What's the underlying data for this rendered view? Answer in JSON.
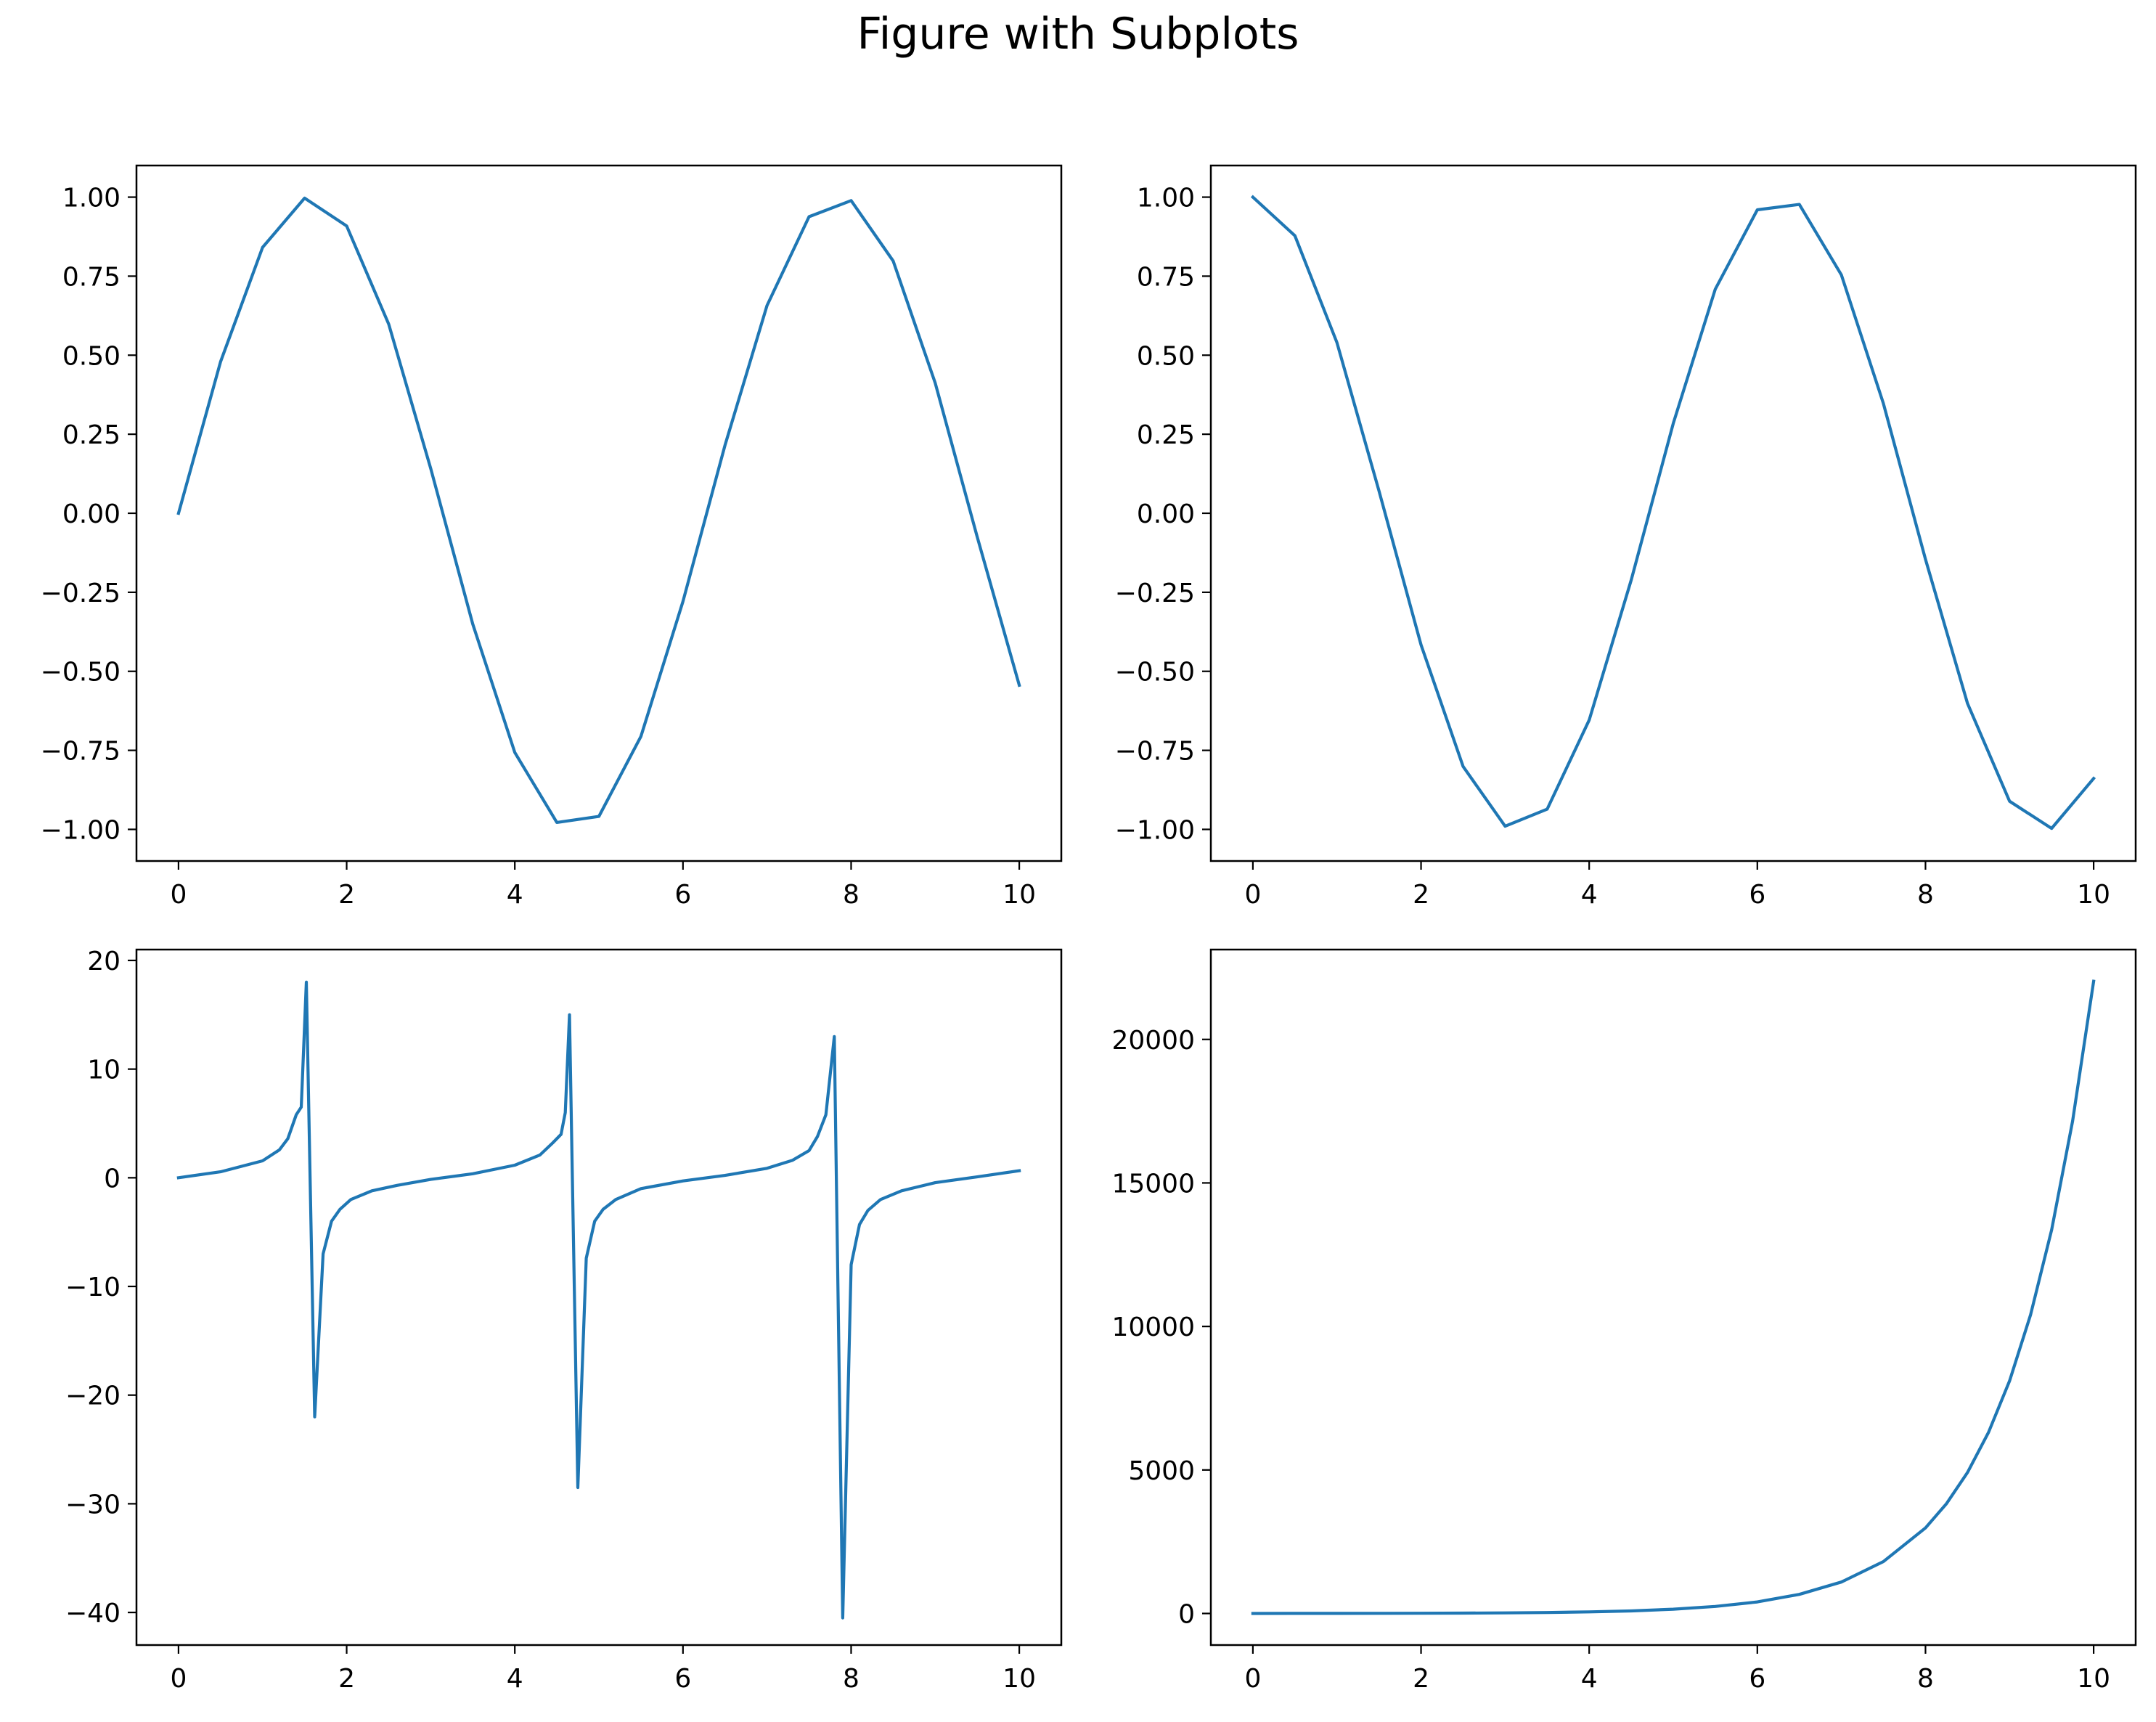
{
  "figure": {
    "title": "Figure with Subplots"
  },
  "colors": {
    "line": "#1f77b4",
    "axes": "#000000",
    "background": "#ffffff"
  },
  "chart_data": [
    {
      "type": "line",
      "position": "top-left",
      "xlim": [
        -0.5,
        10.5
      ],
      "ylim": [
        -1.1,
        1.1
      ],
      "xticks": [
        0,
        2,
        4,
        6,
        8,
        10
      ],
      "yticks": [
        -1.0,
        -0.75,
        -0.5,
        -0.25,
        0.0,
        0.25,
        0.5,
        0.75,
        1.0
      ],
      "xtick_labels": [
        "0",
        "2",
        "4",
        "6",
        "8",
        "10"
      ],
      "ytick_labels": [
        "−1.00",
        "−0.75",
        "−0.50",
        "−0.25",
        "0.00",
        "0.25",
        "0.50",
        "0.75",
        "1.00"
      ],
      "series": [
        {
          "x": [
            0,
            0.5,
            1,
            1.5,
            2,
            2.5,
            3,
            3.5,
            4,
            4.5,
            5,
            5.5,
            6,
            6.5,
            7,
            7.5,
            8,
            8.5,
            9,
            9.5,
            10
          ],
          "y": [
            0,
            0.479,
            0.841,
            0.997,
            0.909,
            0.598,
            0.141,
            -0.351,
            -0.757,
            -0.978,
            -0.959,
            -0.706,
            -0.279,
            0.215,
            0.657,
            0.938,
            0.989,
            0.798,
            0.412,
            -0.075,
            -0.544
          ]
        }
      ]
    },
    {
      "type": "line",
      "position": "top-right",
      "xlim": [
        -0.5,
        10.5
      ],
      "ylim": [
        -1.1,
        1.1
      ],
      "xticks": [
        0,
        2,
        4,
        6,
        8,
        10
      ],
      "yticks": [
        -1.0,
        -0.75,
        -0.5,
        -0.25,
        0.0,
        0.25,
        0.5,
        0.75,
        1.0
      ],
      "xtick_labels": [
        "0",
        "2",
        "4",
        "6",
        "8",
        "10"
      ],
      "ytick_labels": [
        "−1.00",
        "−0.75",
        "−0.50",
        "−0.25",
        "0.00",
        "0.25",
        "0.50",
        "0.75",
        "1.00"
      ],
      "series": [
        {
          "x": [
            0,
            0.5,
            1,
            1.5,
            2,
            2.5,
            3,
            3.5,
            4,
            4.5,
            5,
            5.5,
            6,
            6.5,
            7,
            7.5,
            8,
            8.5,
            9,
            9.5,
            10
          ],
          "y": [
            1,
            0.878,
            0.54,
            0.071,
            -0.416,
            -0.801,
            -0.99,
            -0.936,
            -0.654,
            -0.211,
            0.284,
            0.709,
            0.96,
            0.977,
            0.754,
            0.347,
            -0.146,
            -0.602,
            -0.911,
            -0.997,
            -0.839
          ]
        }
      ]
    },
    {
      "type": "line",
      "position": "bottom-left",
      "xlim": [
        -0.5,
        10.5
      ],
      "ylim": [
        -43,
        21
      ],
      "xticks": [
        0,
        2,
        4,
        6,
        8,
        10
      ],
      "yticks": [
        -40,
        -30,
        -20,
        -10,
        0,
        10,
        20
      ],
      "xtick_labels": [
        "0",
        "2",
        "4",
        "6",
        "8",
        "10"
      ],
      "ytick_labels": [
        "−40",
        "−30",
        "−20",
        "−10",
        "0",
        "10",
        "20"
      ],
      "series": [
        {
          "x": [
            0,
            0.5,
            1.0,
            1.2,
            1.3,
            1.4,
            1.46,
            1.52,
            1.62,
            1.72,
            1.82,
            1.92,
            2.05,
            2.3,
            2.6,
            3.0,
            3.5,
            4.0,
            4.3,
            4.45,
            4.55,
            4.6,
            4.65,
            4.75,
            4.85,
            4.95,
            5.05,
            5.2,
            5.5,
            6.0,
            6.5,
            7.0,
            7.3,
            7.5,
            7.6,
            7.7,
            7.8,
            7.9,
            8.0,
            8.1,
            8.2,
            8.35,
            8.6,
            9.0,
            9.5,
            10.0
          ],
          "y": [
            0,
            0.55,
            1.56,
            2.57,
            3.6,
            5.8,
            6.5,
            18.0,
            -22.0,
            -7.0,
            -4.0,
            -2.9,
            -2.0,
            -1.2,
            -0.7,
            -0.15,
            0.37,
            1.16,
            2.1,
            3.2,
            4.0,
            6.0,
            15.0,
            -28.5,
            -7.4,
            -4.0,
            -2.9,
            -2.0,
            -1.0,
            -0.29,
            0.22,
            0.87,
            1.6,
            2.5,
            3.8,
            5.8,
            13.0,
            -40.5,
            -8.0,
            -4.3,
            -3.0,
            -2.0,
            -1.2,
            -0.45,
            0.08,
            0.65
          ]
        }
      ]
    },
    {
      "type": "line",
      "position": "bottom-right",
      "xlim": [
        -0.5,
        10.5
      ],
      "ylim": [
        -1100,
        23130
      ],
      "xticks": [
        0,
        2,
        4,
        6,
        8,
        10
      ],
      "yticks": [
        0,
        5000,
        10000,
        15000,
        20000
      ],
      "xtick_labels": [
        "0",
        "2",
        "4",
        "6",
        "8",
        "10"
      ],
      "ytick_labels": [
        "0",
        "5000",
        "10000",
        "15000",
        "20000"
      ],
      "series": [
        {
          "x": [
            0,
            0.5,
            1,
            1.5,
            2,
            2.5,
            3,
            3.5,
            4,
            4.5,
            5,
            5.5,
            6,
            6.5,
            7,
            7.5,
            8,
            8.25,
            8.5,
            8.75,
            9,
            9.25,
            9.5,
            9.75,
            10
          ],
          "y": [
            1,
            1.65,
            2.72,
            4.48,
            7.39,
            12.2,
            20.1,
            33.1,
            54.6,
            90.0,
            148.4,
            244.7,
            403.4,
            665.1,
            1096.6,
            1808.0,
            2981.0,
            3827.6,
            4914.8,
            6310.7,
            8103.1,
            10404.6,
            13359.7,
            17154.2,
            22026.5
          ]
        }
      ]
    }
  ]
}
